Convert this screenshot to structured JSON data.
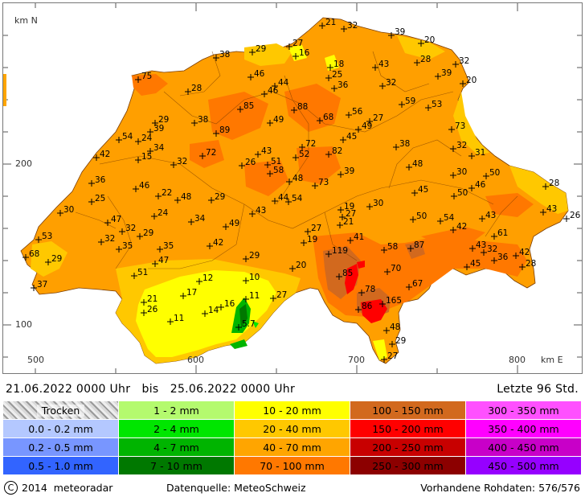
{
  "map": {
    "axis_unit_north": "km N",
    "axis_unit_east": "km E",
    "y_ticks": [
      "200",
      "100"
    ],
    "x_ticks": [
      "500",
      "600",
      "700",
      "800"
    ],
    "stations": [
      {
        "v": "21",
        "x": 397,
        "y": 28
      },
      {
        "v": "32",
        "x": 424,
        "y": 32
      },
      {
        "v": "39",
        "x": 483,
        "y": 40
      },
      {
        "v": "20",
        "x": 520,
        "y": 50
      },
      {
        "v": "27",
        "x": 356,
        "y": 54
      },
      {
        "v": "16",
        "x": 364,
        "y": 66
      },
      {
        "v": "38",
        "x": 265,
        "y": 68
      },
      {
        "v": "29",
        "x": 310,
        "y": 61
      },
      {
        "v": "28",
        "x": 515,
        "y": 74
      },
      {
        "v": "32",
        "x": 563,
        "y": 76
      },
      {
        "v": "43",
        "x": 463,
        "y": 80
      },
      {
        "v": "18",
        "x": 407,
        "y": 80
      },
      {
        "v": "39",
        "x": 541,
        "y": 91
      },
      {
        "v": "20",
        "x": 572,
        "y": 100
      },
      {
        "v": "75",
        "x": 168,
        "y": 95
      },
      {
        "v": "46",
        "x": 308,
        "y": 92
      },
      {
        "v": "25",
        "x": 405,
        "y": 93
      },
      {
        "v": "32",
        "x": 472,
        "y": 103
      },
      {
        "v": "44",
        "x": 338,
        "y": 103
      },
      {
        "v": "36",
        "x": 412,
        "y": 106
      },
      {
        "v": "28",
        "x": 230,
        "y": 110
      },
      {
        "v": "46",
        "x": 325,
        "y": 113
      },
      {
        "v": "59",
        "x": 496,
        "y": 126
      },
      {
        "v": "53",
        "x": 529,
        "y": 130
      },
      {
        "v": "85",
        "x": 295,
        "y": 132
      },
      {
        "v": "88",
        "x": 362,
        "y": 133
      },
      {
        "v": "56",
        "x": 430,
        "y": 139
      },
      {
        "v": "29",
        "x": 189,
        "y": 149
      },
      {
        "v": "38",
        "x": 238,
        "y": 149
      },
      {
        "v": "68",
        "x": 394,
        "y": 146
      },
      {
        "v": "27",
        "x": 456,
        "y": 147
      },
      {
        "v": "49",
        "x": 332,
        "y": 149
      },
      {
        "v": "39",
        "x": 183,
        "y": 160
      },
      {
        "v": "49",
        "x": 442,
        "y": 157
      },
      {
        "v": "89",
        "x": 265,
        "y": 162
      },
      {
        "v": "73",
        "x": 558,
        "y": 157
      },
      {
        "v": "54",
        "x": 144,
        "y": 170
      },
      {
        "v": "24",
        "x": 168,
        "y": 172
      },
      {
        "v": "45",
        "x": 423,
        "y": 170
      },
      {
        "v": "72",
        "x": 372,
        "y": 179
      },
      {
        "v": "38",
        "x": 489,
        "y": 179
      },
      {
        "v": "34",
        "x": 183,
        "y": 184
      },
      {
        "v": "32",
        "x": 560,
        "y": 181
      },
      {
        "v": "31",
        "x": 583,
        "y": 190
      },
      {
        "v": "42",
        "x": 116,
        "y": 192
      },
      {
        "v": "43",
        "x": 317,
        "y": 188
      },
      {
        "v": "82",
        "x": 405,
        "y": 188
      },
      {
        "v": "72",
        "x": 248,
        "y": 190
      },
      {
        "v": "52",
        "x": 364,
        "y": 192
      },
      {
        "v": "15",
        "x": 168,
        "y": 195
      },
      {
        "v": "32",
        "x": 212,
        "y": 201
      },
      {
        "v": "26",
        "x": 297,
        "y": 202
      },
      {
        "v": "51",
        "x": 329,
        "y": 201
      },
      {
        "v": "48",
        "x": 505,
        "y": 204
      },
      {
        "v": "58",
        "x": 332,
        "y": 212
      },
      {
        "v": "39",
        "x": 420,
        "y": 213
      },
      {
        "v": "30",
        "x": 560,
        "y": 214
      },
      {
        "v": "50",
        "x": 601,
        "y": 215
      },
      {
        "v": "36",
        "x": 110,
        "y": 224
      },
      {
        "v": "48",
        "x": 356,
        "y": 222
      },
      {
        "v": "73",
        "x": 388,
        "y": 227
      },
      {
        "v": "28",
        "x": 675,
        "y": 228
      },
      {
        "v": "46",
        "x": 165,
        "y": 231
      },
      {
        "v": "46",
        "x": 583,
        "y": 230
      },
      {
        "v": "45",
        "x": 512,
        "y": 236
      },
      {
        "v": "50",
        "x": 561,
        "y": 240
      },
      {
        "v": "22",
        "x": 193,
        "y": 240
      },
      {
        "v": "48",
        "x": 217,
        "y": 245
      },
      {
        "v": "29",
        "x": 259,
        "y": 245
      },
      {
        "v": "44",
        "x": 338,
        "y": 246
      },
      {
        "v": "54",
        "x": 355,
        "y": 247
      },
      {
        "v": "25",
        "x": 110,
        "y": 247
      },
      {
        "v": "30",
        "x": 456,
        "y": 253
      },
      {
        "v": "19",
        "x": 420,
        "y": 257
      },
      {
        "v": "30",
        "x": 71,
        "y": 261
      },
      {
        "v": "43",
        "x": 310,
        "y": 262
      },
      {
        "v": "43",
        "x": 672,
        "y": 260
      },
      {
        "v": "27",
        "x": 422,
        "y": 266
      },
      {
        "v": "26",
        "x": 701,
        "y": 268
      },
      {
        "v": "24",
        "x": 188,
        "y": 265
      },
      {
        "v": "50",
        "x": 510,
        "y": 269
      },
      {
        "v": "54",
        "x": 544,
        "y": 271
      },
      {
        "v": "43",
        "x": 596,
        "y": 268
      },
      {
        "v": "47",
        "x": 130,
        "y": 273
      },
      {
        "v": "34",
        "x": 234,
        "y": 272
      },
      {
        "v": "21",
        "x": 419,
        "y": 276
      },
      {
        "v": "49",
        "x": 277,
        "y": 278
      },
      {
        "v": "42",
        "x": 560,
        "y": 282
      },
      {
        "v": "32",
        "x": 148,
        "y": 284
      },
      {
        "v": "27",
        "x": 379,
        "y": 284
      },
      {
        "v": "61",
        "x": 611,
        "y": 290
      },
      {
        "v": "29",
        "x": 170,
        "y": 290
      },
      {
        "v": "53",
        "x": 44,
        "y": 294
      },
      {
        "v": "41",
        "x": 432,
        "y": 295
      },
      {
        "v": "32",
        "x": 122,
        "y": 297
      },
      {
        "v": "19",
        "x": 374,
        "y": 298
      },
      {
        "v": "42",
        "x": 257,
        "y": 302
      },
      {
        "v": "35",
        "x": 195,
        "y": 306
      },
      {
        "v": "35",
        "x": 144,
        "y": 306
      },
      {
        "v": "58",
        "x": 474,
        "y": 307
      },
      {
        "v": "87",
        "x": 507,
        "y": 305
      },
      {
        "v": "43",
        "x": 584,
        "y": 305
      },
      {
        "v": "32",
        "x": 598,
        "y": 310
      },
      {
        "v": "36",
        "x": 611,
        "y": 320
      },
      {
        "v": "42",
        "x": 638,
        "y": 314
      },
      {
        "v": "119",
        "x": 405,
        "y": 312
      },
      {
        "v": "68",
        "x": 28,
        "y": 316
      },
      {
        "v": "29",
        "x": 56,
        "y": 322
      },
      {
        "v": "29",
        "x": 302,
        "y": 318
      },
      {
        "v": "47",
        "x": 189,
        "y": 324
      },
      {
        "v": "28",
        "x": 646,
        "y": 328
      },
      {
        "v": "45",
        "x": 577,
        "y": 328
      },
      {
        "v": "20",
        "x": 360,
        "y": 330
      },
      {
        "v": "70",
        "x": 478,
        "y": 334
      },
      {
        "v": "85",
        "x": 418,
        "y": 340
      },
      {
        "v": "51",
        "x": 163,
        "y": 339
      },
      {
        "v": "10",
        "x": 302,
        "y": 345
      },
      {
        "v": "12",
        "x": 244,
        "y": 346
      },
      {
        "v": "67",
        "x": 505,
        "y": 353
      },
      {
        "v": "37",
        "x": 38,
        "y": 354
      },
      {
        "v": "78",
        "x": 446,
        "y": 360
      },
      {
        "v": "17",
        "x": 224,
        "y": 364
      },
      {
        "v": "11",
        "x": 302,
        "y": 368
      },
      {
        "v": "27",
        "x": 336,
        "y": 367
      },
      {
        "v": "165",
        "x": 472,
        "y": 374
      },
      {
        "v": "21",
        "x": 175,
        "y": 372
      },
      {
        "v": "16",
        "x": 271,
        "y": 378
      },
      {
        "v": "14",
        "x": 251,
        "y": 386
      },
      {
        "v": "86",
        "x": 442,
        "y": 381
      },
      {
        "v": "26",
        "x": 175,
        "y": 385
      },
      {
        "v": "11",
        "x": 208,
        "y": 396
      },
      {
        "v": "5.7",
        "x": 293,
        "y": 403
      },
      {
        "v": "48",
        "x": 477,
        "y": 407
      },
      {
        "v": "29",
        "x": 484,
        "y": 424
      },
      {
        "v": "27",
        "x": 474,
        "y": 443
      }
    ]
  },
  "period": {
    "from": "21.06.2022 0000 Uhr",
    "connector": "bis",
    "to": "25.06.2022 0000 Uhr",
    "full": "21.06.2022 0000 Uhr   bis   25.06.2022 0000 Uhr",
    "window": "Letzte 96 Std."
  },
  "legend": {
    "cells": [
      {
        "label": "Trocken",
        "color": "#c8c8c8"
      },
      {
        "label": "1 - 2 mm",
        "color": "#b4fa6e"
      },
      {
        "label": "10 - 20 mm",
        "color": "#ffff00"
      },
      {
        "label": "100 - 150 mm",
        "color": "#d2691e"
      },
      {
        "label": "300 - 350 mm",
        "color": "#ff50ff"
      },
      {
        "label": "0.0 - 0.2 mm",
        "color": "#b4c8ff"
      },
      {
        "label": "2 - 4 mm",
        "color": "#00e600"
      },
      {
        "label": "20 - 40 mm",
        "color": "#ffc800"
      },
      {
        "label": "150 - 200 mm",
        "color": "#ff0000"
      },
      {
        "label": "350 - 400 mm",
        "color": "#ff00ff"
      },
      {
        "label": "0.2 - 0.5 mm",
        "color": "#7896ff"
      },
      {
        "label": "4 - 7 mm",
        "color": "#00b400"
      },
      {
        "label": "40 - 70 mm",
        "color": "#ffa500"
      },
      {
        "label": "200 - 250 mm",
        "color": "#c80000"
      },
      {
        "label": "400 - 450 mm",
        "color": "#c800c8"
      },
      {
        "label": "0.5 - 1.0 mm",
        "color": "#3264ff"
      },
      {
        "label": "7 - 10 mm",
        "color": "#007800"
      },
      {
        "label": "70 - 100 mm",
        "color": "#ff7800"
      },
      {
        "label": "250 - 300 mm",
        "color": "#8c0000"
      },
      {
        "label": "450 - 500 mm",
        "color": "#9600ff"
      }
    ]
  },
  "footer": {
    "copyright_symbol": "C",
    "copyright": "2014  meteoradar",
    "source": "Datenquelle: MeteoSchweiz",
    "rawdata": "Vorhandene Rohdaten: 576/576"
  }
}
